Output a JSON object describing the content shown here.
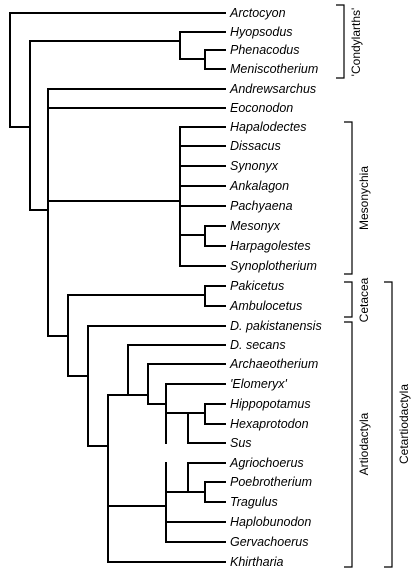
{
  "taxa": [
    "Arctocyon",
    "Hyopsodus",
    "Phenacodus",
    "Meniscotherium",
    "Andrewsarchus",
    "Eoconodon",
    "Hapalodectes",
    "Dissacus",
    "Synonyx",
    "Ankalagon",
    "Pachyaena",
    "Mesonyx",
    "Harpagolestes",
    "Synoplotherium",
    "Pakicetus",
    "Ambulocetus",
    "D. pakistanensis",
    "D. secans",
    "Archaeotherium",
    "'Elomeryx'",
    "Hippopotamus",
    "Hexaprotodon",
    "Sus",
    "Agriochoerus",
    "Poebrotherium",
    "Tragulus",
    "Haplobunodon",
    "Gervachoerus",
    "Khirtharia"
  ],
  "groups": {
    "condylarths": "'Condylarths'",
    "mesonychia": "Mesonychia",
    "cetacea": "Cetacea",
    "artiodactyla": "Artiodactyla",
    "cetartiodactyla": "Cetartiodactyla"
  }
}
